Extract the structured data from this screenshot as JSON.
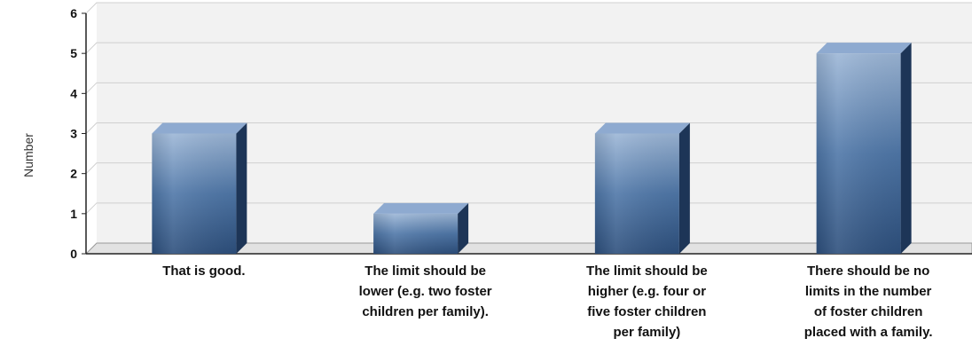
{
  "chart_data": {
    "type": "bar",
    "title": "",
    "xlabel": "",
    "ylabel": "Number",
    "ylim": [
      0,
      6
    ],
    "yticks": [
      "0",
      "1",
      "2",
      "3",
      "4",
      "5",
      "6"
    ],
    "grid": true,
    "legend": "none",
    "categories": [
      [
        "That is good."
      ],
      [
        "The limit should be",
        "lower (e.g. two foster",
        "children per family)."
      ],
      [
        "The limit should be",
        "higher (e.g. four or",
        "five foster children",
        "per family)"
      ],
      [
        "There should be no",
        "limits in the number",
        "of foster children",
        "placed with a family."
      ]
    ],
    "values": [
      3,
      1,
      3,
      5
    ],
    "colors": {
      "bar_top_light": "#9cb6d6",
      "bar_mid": "#4f77a8",
      "bar_dark": "#2d4f7c",
      "bar_side": "#1d3557",
      "bar_cap": "#8eaad0",
      "gridline": "#d0d0d0",
      "wall": "#f2f2f2"
    }
  }
}
